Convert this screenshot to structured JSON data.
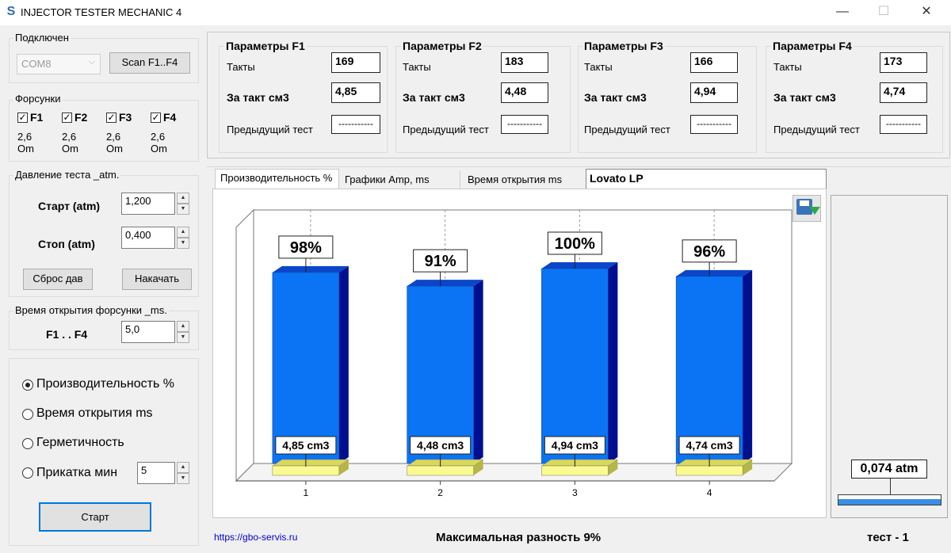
{
  "window": {
    "title": "INJECTOR TESTER MECHANIC 4",
    "app_icon": "S",
    "minimize": "—",
    "maximize": "☐",
    "close": "✕"
  },
  "connection": {
    "group_label": "Подключен",
    "port": "COM8",
    "scan_button": "Scan F1..F4"
  },
  "injectors": {
    "group_label": "Форсунки",
    "items": [
      {
        "label": "F1",
        "checked": true,
        "resistance": "2,6",
        "unit": "Om"
      },
      {
        "label": "F2",
        "checked": true,
        "resistance": "2,6",
        "unit": "Om"
      },
      {
        "label": "F3",
        "checked": true,
        "resistance": "2,6",
        "unit": "Om"
      },
      {
        "label": "F4",
        "checked": true,
        "resistance": "2,6",
        "unit": "Om"
      }
    ],
    "check_mark": "✓"
  },
  "pressure": {
    "group_label": "Давление теста _atm.",
    "start_label": "Старт (atm)",
    "start_value": "1,200",
    "stop_label": "Стоп (atm)",
    "stop_value": "0,400",
    "reset_button": "Сброс дав",
    "pump_button": "Накачать"
  },
  "open_time": {
    "group_label": "Время открытия форсунки _ms.",
    "range_label": "F1 . . F4",
    "value": "5,0"
  },
  "modes": {
    "options": [
      {
        "label": "Производительность %",
        "selected": true
      },
      {
        "label": "Время открытия ms",
        "selected": false
      },
      {
        "label": "Герметичность",
        "selected": false
      },
      {
        "label": "Прикатка мин",
        "selected": false
      }
    ],
    "run_in_minutes": "5",
    "start_button": "Старт"
  },
  "params": [
    {
      "title": "Параметры F1",
      "cycles_label": "Такты",
      "cycles": "169",
      "per_cycle_label": "За такт см3",
      "per_cycle": "4,85",
      "prev_label": "Предыдущий тест",
      "prev": "-----------"
    },
    {
      "title": "Параметры F2",
      "cycles_label": "Такты",
      "cycles": "183",
      "per_cycle_label": "За такт см3",
      "per_cycle": "4,48",
      "prev_label": "Предыдущий тест",
      "prev": "-----------"
    },
    {
      "title": "Параметры F3",
      "cycles_label": "Такты",
      "cycles": "166",
      "per_cycle_label": "За такт см3",
      "per_cycle": "4,94",
      "prev_label": "Предыдущий тест",
      "prev": "-----------"
    },
    {
      "title": "Параметры F4",
      "cycles_label": "Такты",
      "cycles": "173",
      "per_cycle_label": "За такт см3",
      "per_cycle": "4,74",
      "prev_label": "Предыдущий тест",
      "prev": "-----------"
    }
  ],
  "tabs": [
    {
      "label": "Производительность %",
      "active": true
    },
    {
      "label": "Графики   Amp, ms",
      "active": false
    },
    {
      "label": "Время открытия ms",
      "active": false
    }
  ],
  "injector_model": "Lovato LP",
  "chart_data": {
    "type": "bar",
    "categories": [
      "1",
      "2",
      "3",
      "4"
    ],
    "values": [
      98,
      91,
      100,
      96
    ],
    "value_labels": [
      "98%",
      "91%",
      "100%",
      "96%"
    ],
    "volume_labels": [
      "4,85 cm3",
      "4,48 cm3",
      "4,94 cm3",
      "4,74 cm3"
    ],
    "ylim": [
      0,
      100
    ],
    "bar_color": "#0a74f5",
    "bar_side_color": "#000f8f",
    "base_color": "#fafa90",
    "title": "",
    "xlabel": "",
    "ylabel": ""
  },
  "gauge": {
    "pressure": "0,074 atm",
    "level": 0.06,
    "fill_color": "#3a8ee6"
  },
  "footer": {
    "link": "https://gbo-servis.ru",
    "max_diff": "Максимальная разность  9%",
    "test": "тест - 1"
  }
}
